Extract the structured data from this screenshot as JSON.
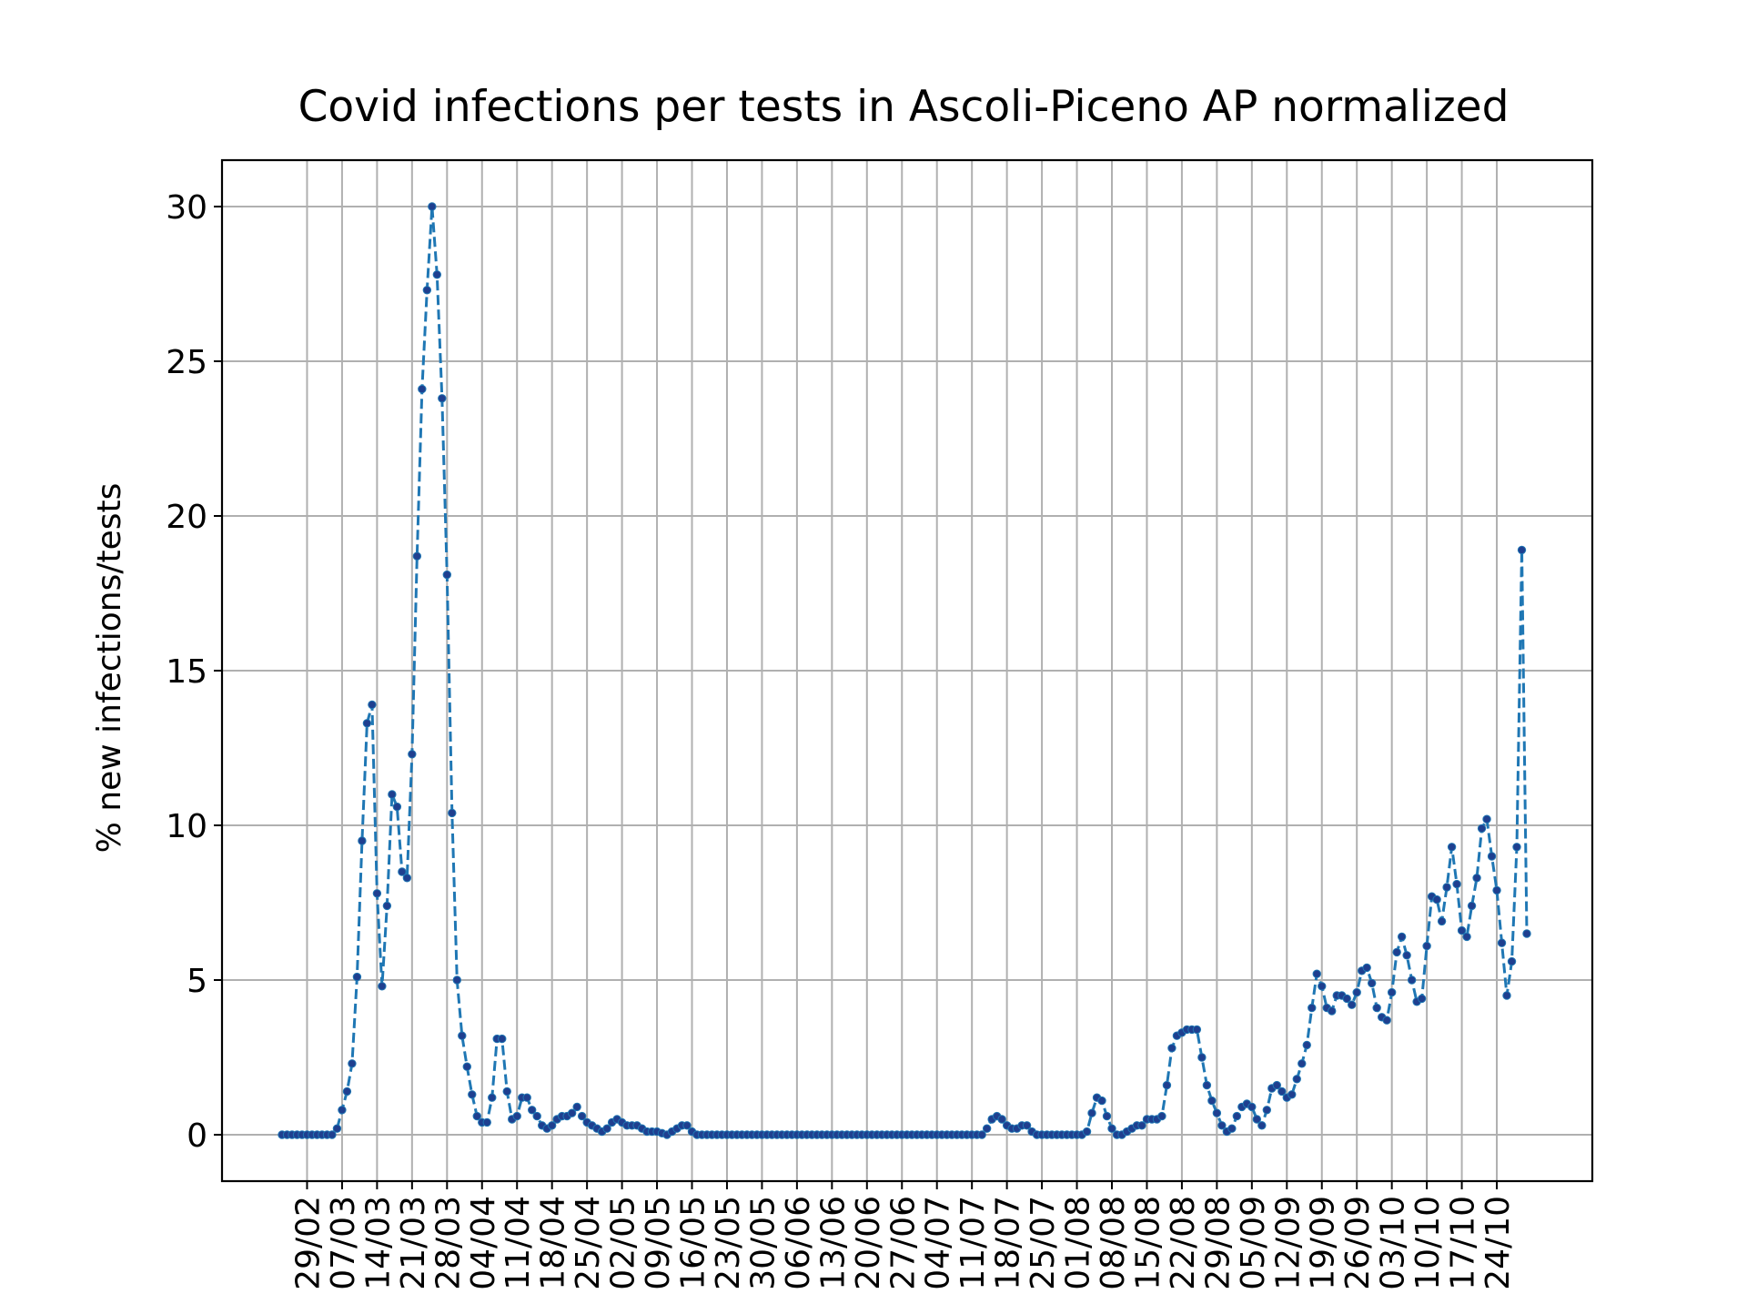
{
  "chart_data": {
    "type": "line",
    "title": "Covid infections per tests in Ascoli-Piceno AP normalized",
    "xlabel": "",
    "ylabel": "% new infections/tests",
    "x_start": "24/02",
    "x_tick_labels": [
      "29/02",
      "07/03",
      "14/03",
      "21/03",
      "28/03",
      "04/04",
      "11/04",
      "18/04",
      "25/04",
      "02/05",
      "09/05",
      "16/05",
      "23/05",
      "30/05",
      "06/06",
      "13/06",
      "20/06",
      "27/06",
      "04/07",
      "11/07",
      "18/07",
      "25/07",
      "01/08",
      "08/08",
      "15/08",
      "22/08",
      "29/08",
      "05/09",
      "12/09",
      "19/09",
      "26/09",
      "03/10",
      "10/10",
      "17/10",
      "24/10"
    ],
    "y_ticks": [
      0,
      5,
      10,
      15,
      20,
      25,
      30
    ],
    "ylim": [
      -1.5,
      31.5
    ],
    "grid": true,
    "line_color": "#1f77b4",
    "marker_color": "#1f3f8f",
    "line_style": "dashed",
    "series": [
      {
        "values": [
          0,
          0,
          0,
          0,
          0,
          0,
          0,
          0,
          0,
          0,
          0,
          0.2,
          0.8,
          1.4,
          2.3,
          5.1,
          9.5,
          13.3,
          13.9,
          7.8,
          4.8,
          7.4,
          11.0,
          10.6,
          8.5,
          8.3,
          12.3,
          18.7,
          24.1,
          27.3,
          30.0,
          27.8,
          23.8,
          18.1,
          10.4,
          5.0,
          3.2,
          2.2,
          1.3,
          0.6,
          0.4,
          0.4,
          1.2,
          3.1,
          3.1,
          1.4,
          0.5,
          0.6,
          1.2,
          1.2,
          0.8,
          0.6,
          0.3,
          0.2,
          0.3,
          0.5,
          0.6,
          0.6,
          0.7,
          0.9,
          0.6,
          0.4,
          0.3,
          0.2,
          0.1,
          0.2,
          0.4,
          0.5,
          0.4,
          0.3,
          0.3,
          0.3,
          0.2,
          0.1,
          0.1,
          0.1,
          0.05,
          0.0,
          0.1,
          0.2,
          0.3,
          0.3,
          0.1,
          0.0,
          0,
          0,
          0,
          0,
          0,
          0,
          0,
          0,
          0,
          0,
          0,
          0,
          0,
          0,
          0,
          0,
          0,
          0,
          0,
          0,
          0,
          0,
          0,
          0,
          0,
          0,
          0,
          0,
          0,
          0,
          0,
          0,
          0,
          0,
          0,
          0,
          0,
          0,
          0,
          0,
          0,
          0,
          0,
          0,
          0,
          0,
          0,
          0,
          0,
          0,
          0,
          0,
          0,
          0,
          0,
          0,
          0,
          0.2,
          0.5,
          0.6,
          0.5,
          0.3,
          0.2,
          0.2,
          0.3,
          0.3,
          0.1,
          0,
          0,
          0,
          0,
          0,
          0,
          0,
          0,
          0,
          0,
          0.1,
          0.7,
          1.2,
          1.1,
          0.6,
          0.2,
          0.0,
          0.0,
          0.1,
          0.2,
          0.3,
          0.3,
          0.5,
          0.5,
          0.5,
          0.6,
          1.6,
          2.8,
          3.2,
          3.3,
          3.4,
          3.4,
          3.4,
          2.5,
          1.6,
          1.1,
          0.7,
          0.3,
          0.1,
          0.2,
          0.6,
          0.9,
          1.0,
          0.9,
          0.5,
          0.3,
          0.8,
          1.5,
          1.6,
          1.4,
          1.2,
          1.3,
          1.8,
          2.3,
          2.9,
          4.1,
          5.2,
          4.8,
          4.1,
          4.0,
          4.5,
          4.5,
          4.4,
          4.2,
          4.6,
          5.3,
          5.4,
          4.9,
          4.1,
          3.8,
          3.7,
          4.6,
          5.9,
          6.4,
          5.8,
          5.0,
          4.3,
          4.4,
          6.1,
          7.7,
          7.6,
          6.9,
          8.0,
          9.3,
          8.1,
          6.6,
          6.4,
          7.4,
          8.3,
          9.9,
          10.2,
          9.0,
          7.9,
          6.2,
          4.5,
          5.6,
          9.3,
          18.9,
          6.5
        ]
      }
    ]
  }
}
